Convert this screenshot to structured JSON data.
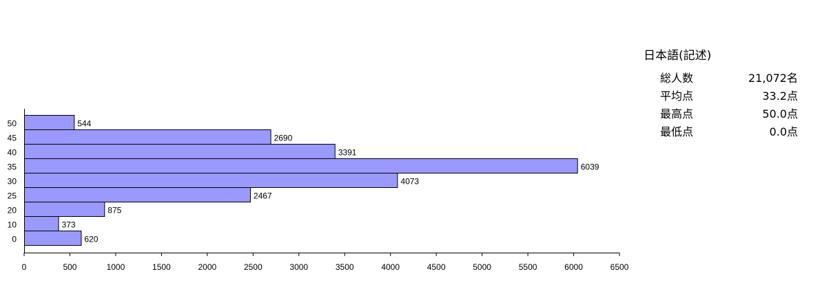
{
  "chart_data": {
    "type": "bar",
    "orientation": "horizontal",
    "categories": [
      "50",
      "45",
      "40",
      "35",
      "30",
      "25",
      "20",
      "10",
      "0"
    ],
    "values": [
      544,
      2690,
      3391,
      6039,
      4073,
      2467,
      875,
      373,
      620
    ],
    "data_labels": [
      "544",
      "2690",
      "3391",
      "6039",
      "4073",
      "2467",
      "875",
      "373",
      "620"
    ],
    "xlim": [
      0,
      6500
    ],
    "xticks": [
      0,
      500,
      1000,
      1500,
      2000,
      2500,
      3000,
      3500,
      4000,
      4500,
      5000,
      5500,
      6000,
      6500
    ],
    "bar_color": "#9999ff",
    "grid": false,
    "title": "",
    "xlabel": "",
    "ylabel": ""
  },
  "stats": {
    "title": "日本語(記述)",
    "rows": [
      {
        "label": "総人数",
        "value": "21,072名"
      },
      {
        "label": "平均点",
        "value": "33.2点"
      },
      {
        "label": "最高点",
        "value": "50.0点"
      },
      {
        "label": "最低点",
        "value": "0.0点"
      }
    ]
  }
}
